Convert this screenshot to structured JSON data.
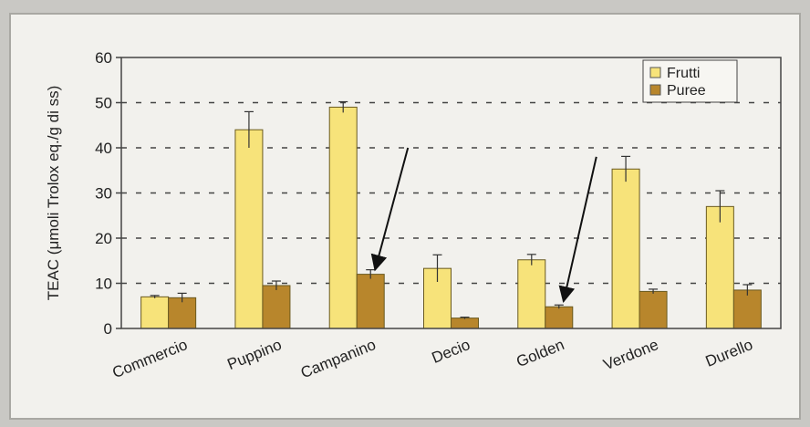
{
  "chart_data": {
    "type": "bar",
    "title": "",
    "xlabel": "",
    "ylabel": "TEAC (μmoli Trolox eq./g di ss)",
    "ylim": [
      0,
      60
    ],
    "yticks": [
      0,
      10,
      20,
      30,
      40,
      50,
      60
    ],
    "grid": "horizontal-dashed",
    "legend_position": "top-right",
    "categories": [
      "Commercio",
      "Puppino",
      "Campanino",
      "Decio",
      "Golden",
      "Verdone",
      "Durello"
    ],
    "series": [
      {
        "name": "Frutti",
        "color": "#f7e37a",
        "values": [
          7,
          44,
          49,
          13.3,
          15.2,
          35.3,
          27
        ],
        "errors": [
          0.3,
          4,
          1.2,
          3,
          1.2,
          2.8,
          3.5
        ]
      },
      {
        "name": "Puree",
        "color": "#b8862c",
        "values": [
          6.8,
          9.5,
          12,
          2.3,
          4.8,
          8.2,
          8.5
        ],
        "errors": [
          1,
          1,
          1,
          0.2,
          0.4,
          0.5,
          1.2
        ]
      }
    ],
    "annotations": [
      {
        "type": "arrow",
        "from": {
          "category": "Campanino",
          "y": 40
        },
        "to": {
          "category": "Campanino",
          "y": 13
        }
      },
      {
        "type": "arrow",
        "from": {
          "category": "Golden",
          "y": 38
        },
        "to": {
          "category": "Golden",
          "y": 6
        }
      }
    ]
  }
}
